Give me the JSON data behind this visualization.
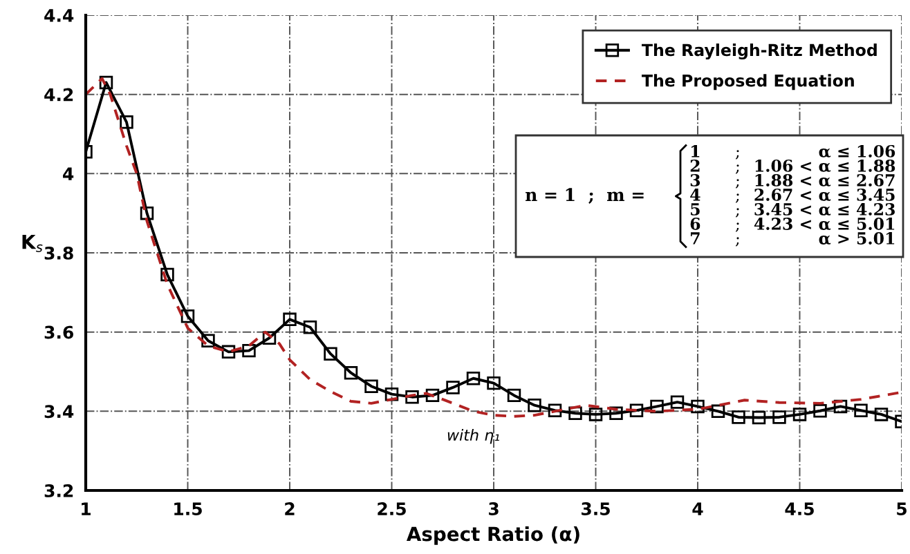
{
  "chart_data": {
    "type": "line",
    "xlabel": "Aspect Ratio (α)",
    "ylabel": "K$_{s}$",
    "xlim": [
      1,
      5
    ],
    "ylim": [
      3.2,
      4.4
    ],
    "xticks": [
      1,
      1.5,
      2,
      2.5,
      3,
      3.5,
      4,
      4.5,
      5
    ],
    "yticks": [
      3.2,
      3.4,
      3.6,
      3.8,
      4,
      4.2,
      4.4
    ],
    "grid": true,
    "legend": "top right",
    "series": [
      {
        "name": "The Rayleigh-Ritz Method",
        "color": "#000000",
        "marker": "square",
        "line_style": "solid",
        "x": [
          1.0,
          1.1,
          1.2,
          1.3,
          1.4,
          1.5,
          1.6,
          1.7,
          1.8,
          1.9,
          2.0,
          2.1,
          2.2,
          2.3,
          2.4,
          2.5,
          2.6,
          2.7,
          2.8,
          2.9,
          3.0,
          3.1,
          3.2,
          3.3,
          3.4,
          3.5,
          3.6,
          3.7,
          3.8,
          3.9,
          4.0,
          4.1,
          4.2,
          4.3,
          4.4,
          4.5,
          4.6,
          4.7,
          4.8,
          4.9,
          5.0
        ],
        "values": [
          4.055,
          4.23,
          4.13,
          3.9,
          3.745,
          3.64,
          3.578,
          3.55,
          3.553,
          3.585,
          3.632,
          3.612,
          3.545,
          3.497,
          3.463,
          3.443,
          3.436,
          3.44,
          3.46,
          3.483,
          3.471,
          3.44,
          3.415,
          3.402,
          3.395,
          3.392,
          3.395,
          3.402,
          3.412,
          3.423,
          3.412,
          3.4,
          3.385,
          3.384,
          3.385,
          3.392,
          3.401,
          3.412,
          3.402,
          3.392,
          3.374
        ]
      },
      {
        "name": "The Proposed Equation",
        "color": "#b22222",
        "marker": "none",
        "line_style": "dashed",
        "x": [
          1.0,
          1.05,
          1.08,
          1.12,
          1.2,
          1.25,
          1.3,
          1.4,
          1.5,
          1.6,
          1.7,
          1.8,
          1.88,
          1.95,
          2.0,
          2.1,
          2.2,
          2.3,
          2.4,
          2.5,
          2.6,
          2.67,
          2.75,
          2.8,
          2.9,
          3.0,
          3.1,
          3.2,
          3.3,
          3.45,
          3.6,
          3.8,
          4.0,
          4.1,
          4.23,
          4.4,
          4.6,
          4.8,
          5.0
        ],
        "values": [
          4.2,
          4.225,
          4.24,
          4.2,
          4.07,
          4.0,
          3.88,
          3.72,
          3.61,
          3.565,
          3.55,
          3.565,
          3.6,
          3.57,
          3.53,
          3.48,
          3.45,
          3.425,
          3.42,
          3.43,
          3.44,
          3.445,
          3.43,
          3.42,
          3.4,
          3.39,
          3.387,
          3.39,
          3.4,
          3.415,
          3.405,
          3.4,
          3.405,
          3.415,
          3.428,
          3.422,
          3.42,
          3.43,
          3.448
        ]
      }
    ],
    "annotations": [
      {
        "text": "with η₁",
        "x": 2.9,
        "y": 3.385
      },
      "n = 1  ;  m =",
      "1 ; α ≤ 1.06",
      "2 ; 1.06 < α ≤ 1.88",
      "3 ; 1.88 < α ≤ 2.67",
      "4 ; 2.67 < α ≤ 3.45",
      "5 ; 3.45 < α ≤ 4.23",
      "6 ; 4.23 < α ≤ 5.01",
      "7 ; α > 5.01"
    ]
  }
}
